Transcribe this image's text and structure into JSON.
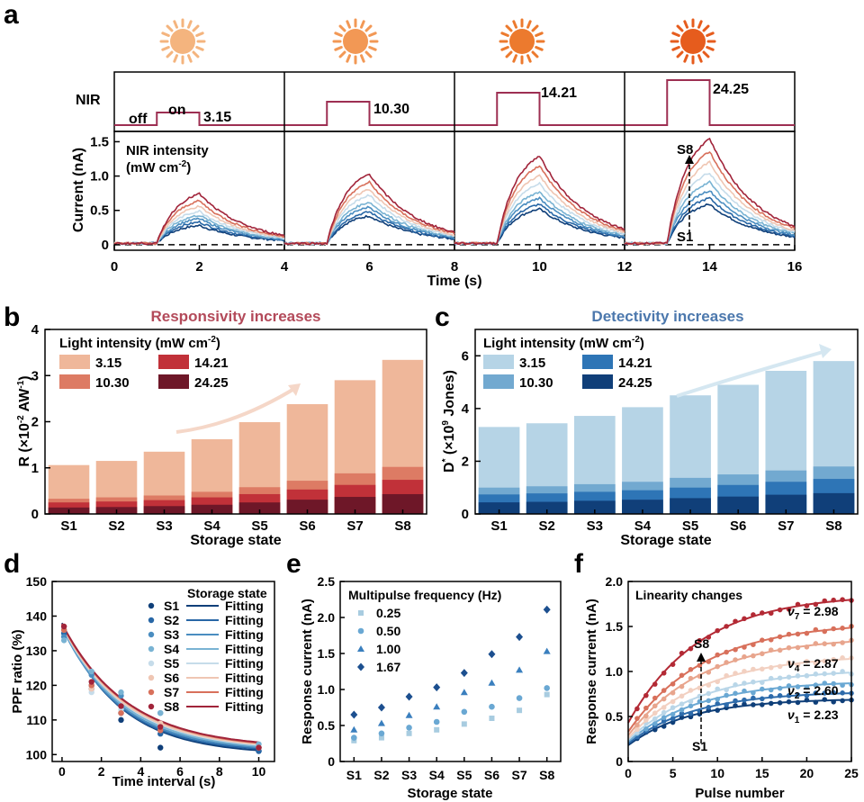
{
  "panel_labels": {
    "a": "a",
    "b": "b",
    "c": "c",
    "d": "d",
    "e": "e",
    "f": "f"
  },
  "colors": {
    "red": [
      "#e6c0b5",
      "#efa98e",
      "#d8705b",
      "#c3363c",
      "#a1243a",
      "#6d1527"
    ],
    "blue": [
      "#c6dcea",
      "#a8cce0",
      "#79b3d3",
      "#4a8dc0",
      "#2867a6",
      "#0f3f79"
    ],
    "stim": "#9d2f52",
    "sun": [
      "#f4b47e",
      "#f29855",
      "#ec7a2e",
      "#e65c1d"
    ],
    "title_b": "#b34a5a",
    "title_c": "#4c78ad"
  },
  "panel_a": {
    "nir_label": "NIR",
    "off_label": "off",
    "on_label": "on",
    "intensities": [
      "3.15",
      "10.30",
      "14.21",
      "24.25"
    ],
    "annotation_title": "NIR intensity",
    "annotation_unit": "(mW cm",
    "annotation_sup": "-2",
    "annotation_close": ")",
    "s8_label": "S8",
    "s1_label": "S1",
    "ylabel": "Current (nA)",
    "xlabel": "Time (s)",
    "y_ticks": [
      "0",
      "0.5",
      "1.0",
      "1.5"
    ],
    "x_ticks": [
      "0",
      "2",
      "4",
      "6",
      "8",
      "10",
      "12",
      "14",
      "16"
    ]
  },
  "chart_data": [
    {
      "id": "a",
      "type": "line",
      "title": "",
      "xlabel": "Time (s)",
      "ylabel": "Current (nA)",
      "xlim": [
        0,
        16
      ],
      "ylim": [
        -0.08,
        1.65
      ],
      "stimulus_windows": [
        [
          1,
          2
        ],
        [
          5,
          6
        ],
        [
          9,
          10
        ],
        [
          13,
          14
        ]
      ],
      "stimulus_intensities": [
        3.15,
        10.3,
        14.21,
        24.25
      ],
      "series": [
        {
          "name": "S1",
          "peaks": [
            0.26,
            0.4,
            0.5,
            0.57
          ]
        },
        {
          "name": "S2",
          "peaks": [
            0.31,
            0.46,
            0.57,
            0.66
          ]
        },
        {
          "name": "S3",
          "peaks": [
            0.36,
            0.53,
            0.66,
            0.77
          ]
        },
        {
          "name": "S4",
          "peaks": [
            0.41,
            0.6,
            0.75,
            0.89
          ]
        },
        {
          "name": "S5",
          "peaks": [
            0.47,
            0.7,
            0.87,
            1.03
          ]
        },
        {
          "name": "S6",
          "peaks": [
            0.54,
            0.79,
            0.99,
            1.18
          ]
        },
        {
          "name": "S7",
          "peaks": [
            0.62,
            0.89,
            1.13,
            1.34
          ]
        },
        {
          "name": "S8",
          "peaks": [
            0.72,
            1.01,
            1.27,
            1.52
          ]
        }
      ]
    },
    {
      "id": "b",
      "type": "bar",
      "title": "Responsivity increases",
      "xlabel": "Storage state",
      "ylabel_main": "R (×10",
      "ylabel_sup": "-2",
      "ylabel_end": " AW",
      "ylabel_sup2": "-1",
      "ylabel_close": ")",
      "ylim": [
        0,
        4
      ],
      "y_ticks": [
        "0",
        "1",
        "2",
        "3",
        "4"
      ],
      "categories": [
        "S1",
        "S2",
        "S3",
        "S4",
        "S5",
        "S6",
        "S7",
        "S8"
      ],
      "legend_title": "Light intensity (mW cm",
      "legend_title_sup": "-2",
      "legend_title_close": ")",
      "series": [
        {
          "name": "3.15",
          "values": [
            1.06,
            1.15,
            1.35,
            1.62,
            1.99,
            2.38,
            2.9,
            3.34
          ]
        },
        {
          "name": "10.30",
          "values": [
            0.33,
            0.36,
            0.4,
            0.48,
            0.58,
            0.72,
            0.88,
            1.02
          ]
        },
        {
          "name": "14.21",
          "values": [
            0.25,
            0.27,
            0.3,
            0.36,
            0.43,
            0.53,
            0.63,
            0.74
          ]
        },
        {
          "name": "24.25",
          "values": [
            0.14,
            0.15,
            0.17,
            0.2,
            0.25,
            0.31,
            0.37,
            0.43
          ]
        }
      ]
    },
    {
      "id": "c",
      "type": "bar",
      "title": "Detectivity increases",
      "xlabel": "Storage state",
      "ylabel_main": "D",
      "ylabel_sup": "*",
      "ylabel_mid": " (×10",
      "ylabel_sup2": "9",
      "ylabel_end": " Jones)",
      "ylim": [
        0,
        7
      ],
      "y_ticks": [
        "0",
        "2",
        "4",
        "6"
      ],
      "categories": [
        "S1",
        "S2",
        "S3",
        "S4",
        "S5",
        "S6",
        "S7",
        "S8"
      ],
      "legend_title": "Light intensity (mW cm",
      "legend_title_sup": "-2",
      "legend_title_close": ")",
      "series": [
        {
          "name": "3.15",
          "values": [
            3.3,
            3.44,
            3.72,
            4.05,
            4.5,
            4.9,
            5.43,
            5.8
          ]
        },
        {
          "name": "10.30",
          "values": [
            1.0,
            1.05,
            1.13,
            1.22,
            1.37,
            1.5,
            1.65,
            1.8
          ]
        },
        {
          "name": "14.21",
          "values": [
            0.74,
            0.78,
            0.84,
            0.9,
            1.0,
            1.1,
            1.22,
            1.33
          ]
        },
        {
          "name": "24.25",
          "values": [
            0.44,
            0.46,
            0.5,
            0.54,
            0.6,
            0.66,
            0.73,
            0.79
          ]
        }
      ]
    },
    {
      "id": "d",
      "type": "scatter",
      "xlabel": "Time interval (s)",
      "ylabel": "PPF ratio (%)",
      "xlim": [
        -0.5,
        10.8
      ],
      "ylim": [
        98,
        150
      ],
      "x_ticks": [
        "0",
        "2",
        "4",
        "6",
        "8",
        "10"
      ],
      "y_ticks": [
        "100",
        "110",
        "120",
        "130",
        "140",
        "150"
      ],
      "legend_title": "Storage state",
      "fit_label": "Fitting",
      "x": [
        0.1,
        1.5,
        3,
        5,
        10
      ],
      "series": [
        {
          "name": "S1",
          "values": [
            136,
            119,
            110,
            102,
            101
          ]
        },
        {
          "name": "S2",
          "values": [
            135,
            120,
            112,
            106,
            101
          ]
        },
        {
          "name": "S3",
          "values": [
            134,
            123,
            117,
            112,
            102
          ]
        },
        {
          "name": "S4",
          "values": [
            133,
            124,
            118,
            112,
            103
          ]
        },
        {
          "name": "S5",
          "values": [
            136,
            118,
            113,
            108,
            102
          ]
        },
        {
          "name": "S6",
          "values": [
            137,
            119,
            114,
            109,
            102
          ]
        },
        {
          "name": "S7",
          "values": [
            136,
            120,
            112,
            107,
            102
          ]
        },
        {
          "name": "S8",
          "values": [
            137,
            121,
            114,
            108,
            102
          ]
        }
      ],
      "fits": [
        {
          "name": "S1",
          "y0": 100,
          "A": 38,
          "tau": 2.9
        },
        {
          "name": "S2",
          "y0": 100.5,
          "A": 37,
          "tau": 2.9
        },
        {
          "name": "S3",
          "y0": 100.8,
          "A": 36,
          "tau": 3.0
        },
        {
          "name": "S4",
          "y0": 101,
          "A": 36,
          "tau": 3.1
        },
        {
          "name": "S5",
          "y0": 101.2,
          "A": 36,
          "tau": 3.2
        },
        {
          "name": "S6",
          "y0": 101.4,
          "A": 36,
          "tau": 3.2
        },
        {
          "name": "S7",
          "y0": 101.6,
          "A": 36,
          "tau": 3.3
        },
        {
          "name": "S8",
          "y0": 101.8,
          "A": 36,
          "tau": 3.3
        }
      ]
    },
    {
      "id": "e",
      "type": "scatter",
      "title": "Multipulse frequency (Hz)",
      "xlabel": "Storage state",
      "ylabel": "Response current (nA)",
      "ylim": [
        0,
        2.5
      ],
      "y_ticks": [
        "0",
        "0.5",
        "1.0",
        "1.5",
        "2.0",
        "2.5"
      ],
      "categories": [
        "S1",
        "S2",
        "S3",
        "S4",
        "S5",
        "S6",
        "S7",
        "S8"
      ],
      "series": [
        {
          "name": "0.25",
          "values": [
            0.29,
            0.33,
            0.39,
            0.44,
            0.52,
            0.6,
            0.71,
            0.93
          ]
        },
        {
          "name": "0.50",
          "values": [
            0.33,
            0.39,
            0.47,
            0.55,
            0.69,
            0.76,
            0.88,
            1.02
          ]
        },
        {
          "name": "1.00",
          "values": [
            0.44,
            0.53,
            0.64,
            0.76,
            0.96,
            1.09,
            1.27,
            1.53
          ]
        },
        {
          "name": "1.67",
          "values": [
            0.65,
            0.75,
            0.9,
            1.03,
            1.23,
            1.49,
            1.73,
            2.11
          ]
        }
      ]
    },
    {
      "id": "f",
      "type": "scatter",
      "title": "Linearity changes",
      "xlabel": "Pulse number",
      "ylabel": "Response current (nA)",
      "xlim": [
        0,
        25
      ],
      "ylim": [
        0,
        2.0
      ],
      "x_ticks": [
        "0",
        "5",
        "10",
        "15",
        "20",
        "25"
      ],
      "y_ticks": [
        "0",
        "0.5",
        "1.0",
        "1.5",
        "2.0"
      ],
      "s8_label": "S8",
      "s1_label": "S1",
      "nu_labels": [
        {
          "sym": "ν",
          "sub": "7",
          "val": " = 2.98",
          "y": 1.67
        },
        {
          "sym": "ν",
          "sub": "4",
          "val": " = 2.87",
          "y": 1.09
        },
        {
          "sym": "ν",
          "sub": "2",
          "val": " = 2.60",
          "y": 0.79
        },
        {
          "sym": "ν",
          "sub": "1",
          "val": " = 2.23",
          "y": 0.52
        }
      ],
      "series": [
        {
          "name": "S1",
          "G": 0.18,
          "A": 0.52,
          "tau": 7
        },
        {
          "name": "S2",
          "G": 0.2,
          "A": 0.58,
          "tau": 7.5
        },
        {
          "name": "S3",
          "G": 0.22,
          "A": 0.68,
          "tau": 8
        },
        {
          "name": "S4",
          "G": 0.24,
          "A": 0.79,
          "tau": 8.5
        },
        {
          "name": "S5",
          "G": 0.26,
          "A": 0.93,
          "tau": 8.5
        },
        {
          "name": "S6",
          "G": 0.29,
          "A": 1.1,
          "tau": 8.5
        },
        {
          "name": "S7",
          "G": 0.33,
          "A": 1.22,
          "tau": 8.5
        },
        {
          "name": "S8",
          "G": 0.43,
          "A": 1.43,
          "tau": 8
        }
      ]
    }
  ]
}
